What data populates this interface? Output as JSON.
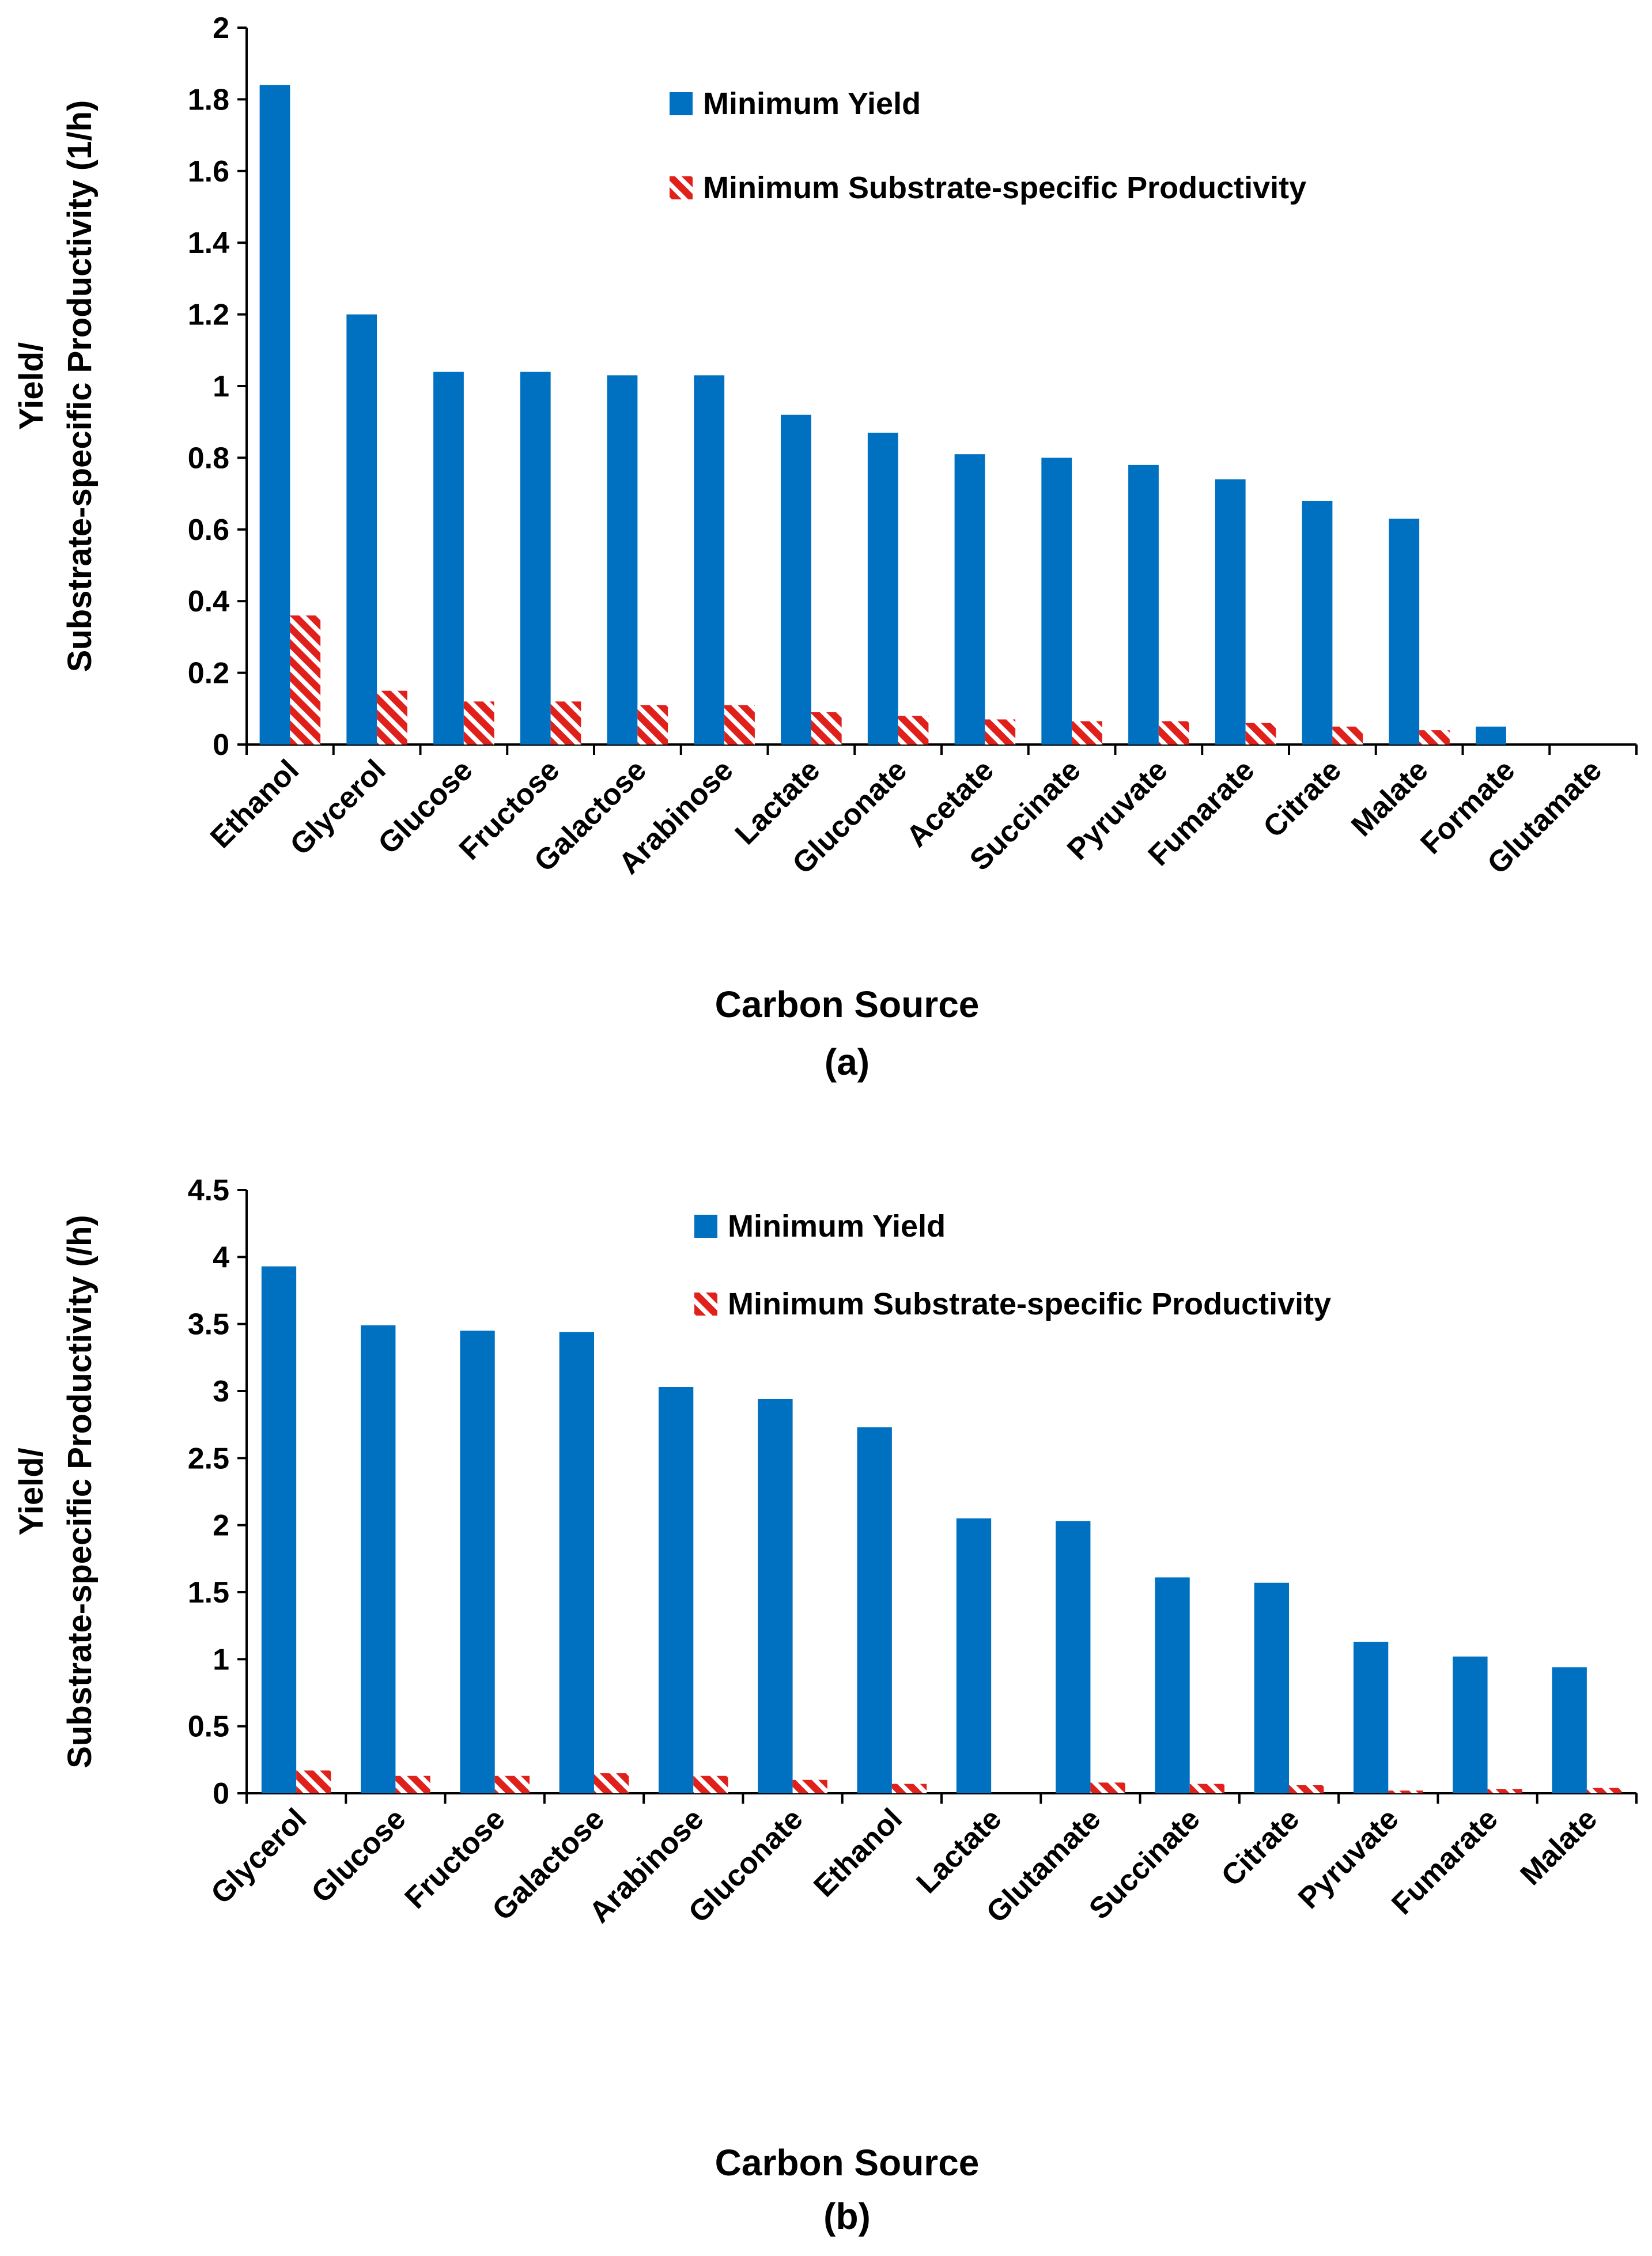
{
  "chart_data": [
    {
      "panel_label": "(a)",
      "type": "bar",
      "ylabel_line1": "Yield/",
      "ylabel_line2": "Substrate-specific Productivity (1/h)",
      "xlabel": "Carbon Source",
      "ylim": [
        0,
        2
      ],
      "yticks": [
        0,
        0.2,
        0.4,
        0.6,
        0.8,
        1,
        1.2,
        1.4,
        1.6,
        1.8,
        2
      ],
      "ytick_labels": [
        "0",
        "0.2",
        "0.4",
        "0.6",
        "0.8",
        "1",
        "1.2",
        "1.4",
        "1.6",
        "1.8",
        "2"
      ],
      "grid": false,
      "legend_position": "top-right",
      "categories": [
        "Ethanol",
        "Glycerol",
        "Glucose",
        "Fructose",
        "Galactose",
        "Arabinose",
        "Lactate",
        "Gluconate",
        "Acetate",
        "Succinate",
        "Pyruvate",
        "Fumarate",
        "Citrate",
        "Malate",
        "Formate",
        "Glutamate"
      ],
      "series": [
        {
          "name": "Minimum Yield",
          "color": "#0070c0",
          "pattern": "solid",
          "values": [
            1.84,
            1.2,
            1.04,
            1.04,
            1.03,
            1.03,
            0.92,
            0.87,
            0.81,
            0.8,
            0.78,
            0.74,
            0.68,
            0.63,
            0.05,
            0
          ]
        },
        {
          "name": "Minimum Substrate-specific Productivity",
          "color": "#e0201b",
          "pattern": "hatched",
          "values": [
            0.36,
            0.15,
            0.12,
            0.12,
            0.11,
            0.11,
            0.09,
            0.08,
            0.07,
            0.065,
            0.065,
            0.06,
            0.05,
            0.04,
            0,
            0
          ]
        }
      ]
    },
    {
      "panel_label": "(b)",
      "type": "bar",
      "ylabel_line1": "Yield/",
      "ylabel_line2": "Substrate-specific Productivity (/h)",
      "xlabel": "Carbon Source",
      "ylim": [
        0,
        4.5
      ],
      "yticks": [
        0,
        0.5,
        1,
        1.5,
        2,
        2.5,
        3,
        3.5,
        4,
        4.5
      ],
      "ytick_labels": [
        "0",
        "0.5",
        "1",
        "1.5",
        "2",
        "2.5",
        "3",
        "3.5",
        "4",
        "4.5"
      ],
      "grid": false,
      "legend_position": "top-right",
      "categories": [
        "Glycerol",
        "Glucose",
        "Fructose",
        "Galactose",
        "Arabinose",
        "Gluconate",
        "Ethanol",
        "Lactate",
        "Glutamate",
        "Succinate",
        "Citrate",
        "Pyruvate",
        "Fumarate",
        "Malate"
      ],
      "series": [
        {
          "name": "Minimum Yield",
          "color": "#0070c0",
          "pattern": "solid",
          "values": [
            3.93,
            3.49,
            3.45,
            3.44,
            3.03,
            2.94,
            2.73,
            2.05,
            2.03,
            1.61,
            1.57,
            1.13,
            1.02,
            0.94
          ]
        },
        {
          "name": "Minimum Substrate-specific Productivity",
          "color": "#e0201b",
          "pattern": "hatched",
          "values": [
            0.17,
            0.13,
            0.13,
            0.15,
            0.13,
            0.1,
            0.07,
            0,
            0.08,
            0.07,
            0.06,
            0.02,
            0.03,
            0.04
          ]
        }
      ]
    }
  ]
}
